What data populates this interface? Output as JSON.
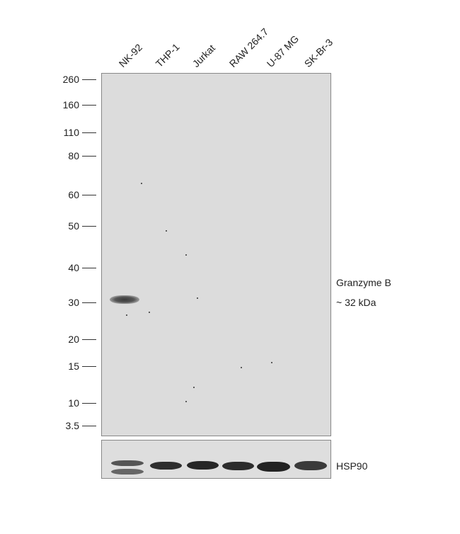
{
  "lanes": [
    "NK-92",
    "THP-1",
    "Jurkat",
    "RAW 264.7",
    "U-87 MG",
    "SK-Br-3"
  ],
  "markers_kda": [
    "260",
    "160",
    "110",
    "80",
    "60",
    "50",
    "40",
    "30",
    "20",
    "15",
    "10",
    "3.5"
  ],
  "target": {
    "name": "Granzyme B",
    "size": "~ 32 kDa",
    "detected_in": [
      "NK-92"
    ]
  },
  "loading_control": {
    "name": "HSP90"
  },
  "colors": {
    "membrane": "#dcdcdc",
    "band": "#2a2a2a"
  }
}
